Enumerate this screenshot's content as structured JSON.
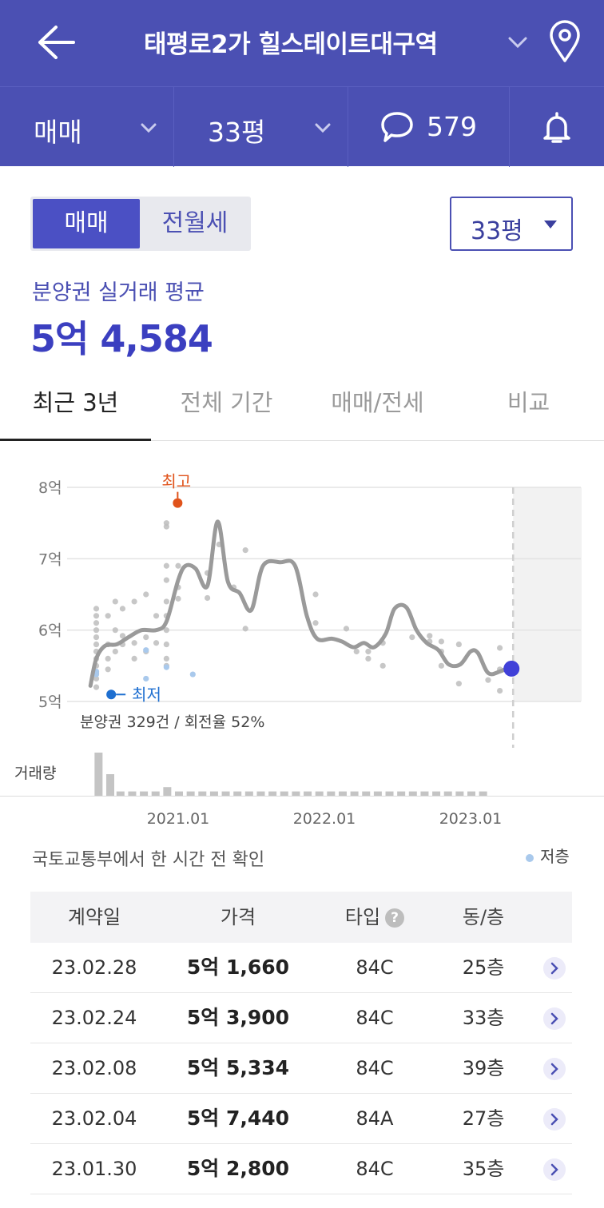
{
  "header": {
    "title": "태평로2가 힐스테이트대구역",
    "icons": [
      "back-arrow-icon",
      "chevron-down-icon",
      "location-pin-icon"
    ]
  },
  "subbar": {
    "deal_type": "매매",
    "pyeong": "33평",
    "comment_count": "579",
    "icons": [
      "chevron-down-icon",
      "chat-bubble-icon",
      "bell-icon"
    ]
  },
  "toggle": {
    "active": "매매",
    "inactive": "전월세"
  },
  "pyeong_select": {
    "value": "33평"
  },
  "summary": {
    "label": "분양권 실거래 평균",
    "value": "5억 4,584"
  },
  "tabs": [
    {
      "label": "최근 3년",
      "active": true
    },
    {
      "label": "전체 기간",
      "active": false
    },
    {
      "label": "매매/전세",
      "active": false
    },
    {
      "label": "비교",
      "active": false
    }
  ],
  "chart_data": {
    "type": "line",
    "ylim": [
      5,
      8
    ],
    "y_ticks": [
      "5억",
      "6억",
      "7억",
      "8억"
    ],
    "x_ticks": [
      "2021.01",
      "2022.01",
      "2023.01"
    ],
    "annotations": {
      "high": "최고",
      "low": "최저",
      "stats": "분양권 329건 / 회전율 52%"
    },
    "volume_label": "거래량",
    "trend_line": [
      [
        2020.4,
        5.22
      ],
      [
        2020.44,
        5.6
      ],
      [
        2020.5,
        5.78
      ],
      [
        2020.58,
        5.8
      ],
      [
        2020.66,
        5.9
      ],
      [
        2020.75,
        6.0
      ],
      [
        2020.85,
        6.0
      ],
      [
        2020.92,
        6.12
      ],
      [
        2021.0,
        6.7
      ],
      [
        2021.05,
        6.9
      ],
      [
        2021.12,
        6.86
      ],
      [
        2021.2,
        6.62
      ],
      [
        2021.27,
        7.52
      ],
      [
        2021.34,
        6.68
      ],
      [
        2021.42,
        6.52
      ],
      [
        2021.5,
        6.28
      ],
      [
        2021.58,
        6.9
      ],
      [
        2021.7,
        6.95
      ],
      [
        2021.8,
        6.9
      ],
      [
        2021.88,
        6.2
      ],
      [
        2021.95,
        5.88
      ],
      [
        2022.05,
        5.88
      ],
      [
        2022.12,
        5.84
      ],
      [
        2022.2,
        5.76
      ],
      [
        2022.27,
        5.82
      ],
      [
        2022.34,
        5.76
      ],
      [
        2022.42,
        5.95
      ],
      [
        2022.48,
        6.3
      ],
      [
        2022.56,
        6.32
      ],
      [
        2022.63,
        6.0
      ],
      [
        2022.7,
        5.82
      ],
      [
        2022.78,
        5.72
      ],
      [
        2022.85,
        5.52
      ],
      [
        2022.93,
        5.52
      ],
      [
        2023.0,
        5.7
      ],
      [
        2023.05,
        5.68
      ],
      [
        2023.12,
        5.4
      ],
      [
        2023.2,
        5.42
      ],
      [
        2023.28,
        5.5
      ]
    ],
    "scatter": [
      [
        2020.44,
        6.3
      ],
      [
        2020.44,
        6.2
      ],
      [
        2020.44,
        6.1
      ],
      [
        2020.44,
        6.0
      ],
      [
        2020.44,
        5.9
      ],
      [
        2020.44,
        5.8
      ],
      [
        2020.44,
        5.7
      ],
      [
        2020.44,
        5.6
      ],
      [
        2020.44,
        5.5
      ],
      [
        2020.44,
        5.4
      ],
      [
        2020.44,
        5.32
      ],
      [
        2020.44,
        5.2
      ],
      [
        2020.52,
        6.2
      ],
      [
        2020.52,
        5.8
      ],
      [
        2020.52,
        5.6
      ],
      [
        2020.52,
        5.45
      ],
      [
        2020.57,
        6.4
      ],
      [
        2020.57,
        6.0
      ],
      [
        2020.57,
        5.7
      ],
      [
        2020.62,
        6.3
      ],
      [
        2020.62,
        5.92
      ],
      [
        2020.62,
        5.8
      ],
      [
        2020.7,
        6.4
      ],
      [
        2020.7,
        5.82
      ],
      [
        2020.7,
        5.6
      ],
      [
        2020.78,
        6.5
      ],
      [
        2020.78,
        5.9
      ],
      [
        2020.78,
        5.7
      ],
      [
        2020.85,
        6.2
      ],
      [
        2020.85,
        5.82
      ],
      [
        2020.92,
        7.5
      ],
      [
        2020.92,
        7.45
      ],
      [
        2020.92,
        6.9
      ],
      [
        2020.92,
        6.7
      ],
      [
        2020.92,
        6.4
      ],
      [
        2020.92,
        6.2
      ],
      [
        2020.92,
        6.0
      ],
      [
        2020.92,
        5.8
      ],
      [
        2020.92,
        5.6
      ],
      [
        2020.92,
        5.5
      ],
      [
        2021.0,
        6.9
      ],
      [
        2021.0,
        6.6
      ],
      [
        2021.0,
        6.44
      ],
      [
        2021.2,
        6.8
      ],
      [
        2021.2,
        6.45
      ],
      [
        2021.28,
        7.2
      ],
      [
        2021.38,
        6.6
      ],
      [
        2021.46,
        7.12
      ],
      [
        2021.46,
        6.02
      ],
      [
        2021.94,
        6.5
      ],
      [
        2021.94,
        6.1
      ],
      [
        2022.15,
        6.02
      ],
      [
        2022.22,
        5.7
      ],
      [
        2022.3,
        5.7
      ],
      [
        2022.3,
        5.6
      ],
      [
        2022.4,
        5.5
      ],
      [
        2022.4,
        5.82
      ],
      [
        2022.6,
        5.9
      ],
      [
        2022.72,
        5.92
      ],
      [
        2022.72,
        5.84
      ],
      [
        2022.8,
        5.84
      ],
      [
        2022.8,
        5.7
      ],
      [
        2022.8,
        5.5
      ],
      [
        2022.92,
        5.8
      ],
      [
        2022.92,
        5.25
      ],
      [
        2023.12,
        5.3
      ],
      [
        2023.2,
        5.75
      ],
      [
        2023.2,
        5.45
      ],
      [
        2023.2,
        5.15
      ]
    ],
    "low_floor_points": [
      [
        2020.44,
        5.42
      ],
      [
        2020.44,
        5.38
      ],
      [
        2020.78,
        5.72
      ],
      [
        2020.78,
        5.32
      ],
      [
        2021.1,
        5.38
      ],
      [
        2020.92,
        5.48
      ]
    ],
    "high_point": [
      2020.92,
      7.78
    ],
    "low_point": [
      2020.52,
      5.12
    ],
    "current_point": [
      2023.28,
      5.46
    ],
    "volume_bars": [
      [
        2020.45,
        10
      ],
      [
        2020.53,
        5
      ],
      [
        2020.6,
        1
      ],
      [
        2020.68,
        1
      ],
      [
        2020.76,
        1
      ],
      [
        2020.84,
        1
      ],
      [
        2020.92,
        2
      ],
      [
        2021.0,
        1
      ],
      [
        2021.08,
        1
      ],
      [
        2021.16,
        1
      ],
      [
        2021.24,
        1
      ],
      [
        2021.32,
        1
      ],
      [
        2021.4,
        1
      ],
      [
        2021.48,
        1
      ],
      [
        2021.56,
        1
      ],
      [
        2021.64,
        1
      ],
      [
        2021.72,
        1
      ],
      [
        2021.8,
        1
      ],
      [
        2021.88,
        1
      ],
      [
        2021.96,
        1
      ],
      [
        2022.04,
        1
      ],
      [
        2022.12,
        1
      ],
      [
        2022.2,
        1
      ],
      [
        2022.28,
        1
      ],
      [
        2022.36,
        1
      ],
      [
        2022.44,
        1
      ],
      [
        2022.52,
        1
      ],
      [
        2022.6,
        1
      ],
      [
        2022.68,
        1
      ],
      [
        2022.76,
        1
      ],
      [
        2022.84,
        1
      ],
      [
        2022.92,
        1
      ],
      [
        2023.0,
        1
      ],
      [
        2023.08,
        1
      ]
    ]
  },
  "source": "국토교통부에서 한 시간 전 확인",
  "legend": {
    "low_floor": "저층",
    "low_floor_color": "#a9c9ec"
  },
  "table": {
    "headers": {
      "date": "계약일",
      "price": "가격",
      "type": "타입",
      "floor": "동/층"
    },
    "rows": [
      {
        "date": "23.02.28",
        "price": "5억 1,660",
        "type": "84C",
        "floor": "25층"
      },
      {
        "date": "23.02.24",
        "price": "5억 3,900",
        "type": "84C",
        "floor": "33층"
      },
      {
        "date": "23.02.08",
        "price": "5억 5,334",
        "type": "84C",
        "floor": "39층"
      },
      {
        "date": "23.02.04",
        "price": "5억 7,440",
        "type": "84A",
        "floor": "27층"
      },
      {
        "date": "23.01.30",
        "price": "5억 2,800",
        "type": "84C",
        "floor": "35층"
      }
    ]
  },
  "colors": {
    "primary": "#4b50b3",
    "accent": "#3b3fc0",
    "high": "#e0531b",
    "low": "#1e6fd0",
    "trend": "#999999"
  }
}
